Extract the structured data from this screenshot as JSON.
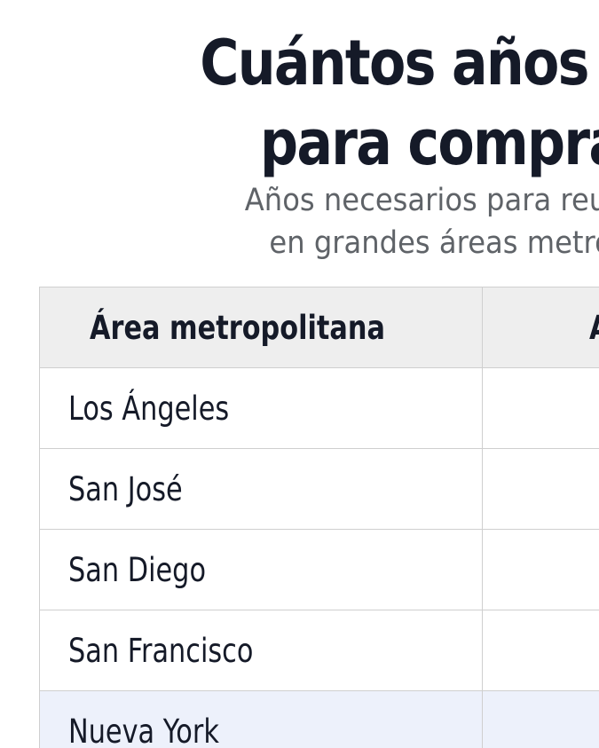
{
  "title": {
    "line1": "Cuántos años hay q",
    "line2": "para comprar u"
  },
  "subtitle": {
    "line1": "Años necesarios para reunir un pa",
    "line2": "en grandes áreas metropolitan"
  },
  "table": {
    "headers": [
      "Área metropolitana",
      "A"
    ],
    "rows": [
      {
        "area": "Los Ángeles",
        "value": ""
      },
      {
        "area": "San José",
        "value": ""
      },
      {
        "area": "San Diego",
        "value": ""
      },
      {
        "area": "San Francisco",
        "value": ""
      },
      {
        "area": "Nueva York",
        "value": ""
      }
    ],
    "highlight_color": "#edf1fb"
  }
}
